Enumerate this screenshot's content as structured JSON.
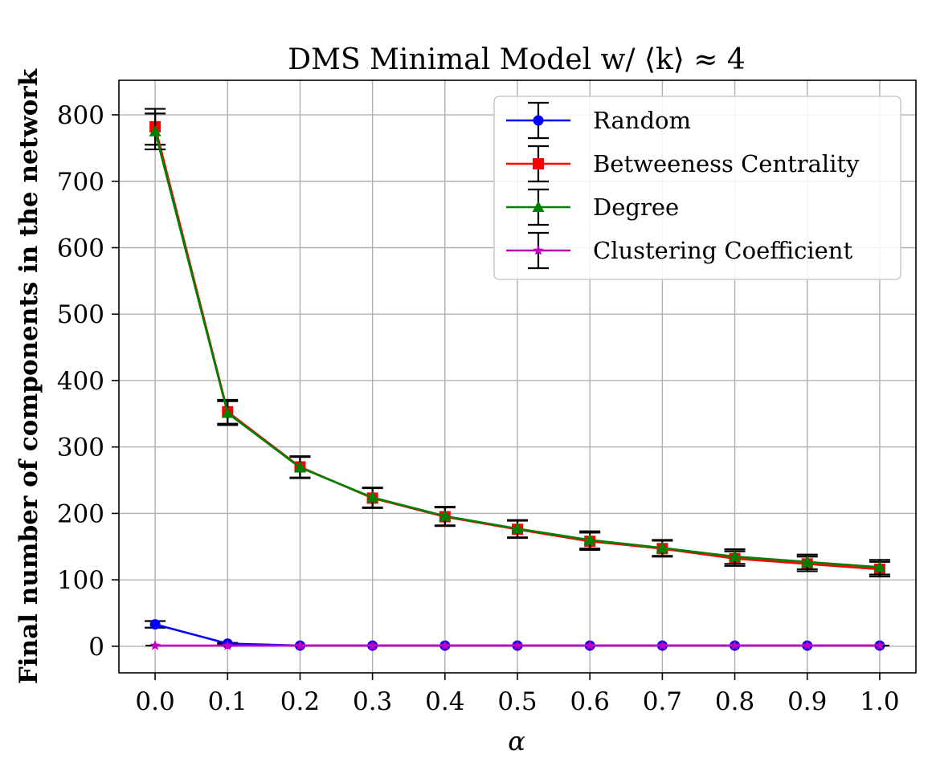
{
  "chart_data": {
    "type": "line",
    "title": "DMS Minimal Model w/ ⟨k⟩ ≈ 4",
    "xlabel": "α",
    "ylabel": "Final number of components in the network",
    "x": [
      0.0,
      0.1,
      0.2,
      0.3,
      0.4,
      0.5,
      0.6,
      0.7,
      0.8,
      0.9,
      1.0
    ],
    "x_tick_labels": [
      "0.0",
      "0.1",
      "0.2",
      "0.3",
      "0.4",
      "0.5",
      "0.6",
      "0.7",
      "0.8",
      "0.9",
      "1.0"
    ],
    "y_ticks": [
      0,
      100,
      200,
      300,
      400,
      500,
      600,
      700,
      800
    ],
    "y_tick_labels": [
      "0",
      "100",
      "200",
      "300",
      "400",
      "500",
      "600",
      "700",
      "800"
    ],
    "xlim": [
      -0.05,
      1.05
    ],
    "ylim": [
      -40,
      852
    ],
    "grid": true,
    "legend_position": "top-right",
    "error_bar_color": "#000000",
    "series": [
      {
        "name": "Random",
        "color": "#0000ff",
        "marker": "circle",
        "values": [
          33,
          4,
          1,
          1,
          1,
          1,
          1,
          1,
          1,
          1,
          1
        ],
        "errors": [
          5,
          1,
          0,
          0,
          0,
          0,
          0,
          0,
          0,
          0,
          0
        ]
      },
      {
        "name": "Betweeness Centrality",
        "color": "#ff0000",
        "marker": "square",
        "values": [
          782,
          353,
          270,
          223,
          195,
          176,
          158,
          147,
          132,
          124,
          116
        ],
        "errors": [
          27,
          18,
          16,
          15,
          14,
          13,
          13,
          12,
          11,
          11,
          11
        ]
      },
      {
        "name": "Degree",
        "color": "#008000",
        "marker": "triangle",
        "values": [
          775,
          351,
          269,
          224,
          196,
          177,
          160,
          148,
          135,
          127,
          119
        ],
        "errors": [
          27,
          18,
          16,
          15,
          14,
          13,
          13,
          12,
          11,
          11,
          11
        ]
      },
      {
        "name": "Clustering Coefficient",
        "color": "#bf00bf",
        "marker": "star",
        "values": [
          1,
          1,
          1,
          1,
          1,
          1,
          1,
          1,
          1,
          1,
          1
        ],
        "errors": [
          0,
          0,
          0,
          0,
          0,
          0,
          0,
          0,
          0,
          0,
          0
        ]
      }
    ]
  }
}
